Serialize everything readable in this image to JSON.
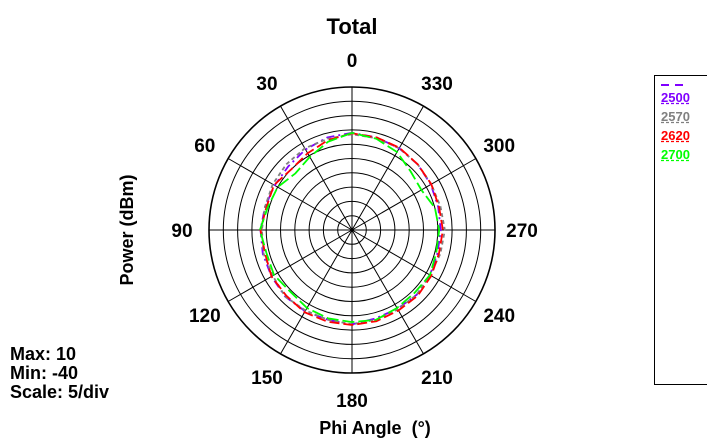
{
  "chart_data": {
    "type": "polar-line",
    "title": "Total",
    "rlabel": "Power (dBm)",
    "anglelabel": "Phi Angle  (°)",
    "angle_ticks": [
      "0",
      "30",
      "60",
      "90",
      "120",
      "150",
      "180",
      "210",
      "240",
      "270",
      "300",
      "330"
    ],
    "angle_direction": "counterclockwise",
    "angle_zero": "top",
    "rlim": [
      -40,
      10
    ],
    "r_step": 5,
    "stats": {
      "max": "Max: 10",
      "min": "Min: -40",
      "scale": "Scale: 5/div"
    },
    "series": [
      {
        "name": "2500",
        "color": "#8000ff",
        "dash": "8,4,2,4",
        "values": [
          [
            0,
            -6.0
          ],
          [
            15,
            -6.5
          ],
          [
            30,
            -7.5
          ],
          [
            45,
            -8.5
          ],
          [
            60,
            -8.8
          ],
          [
            75,
            -8.5
          ],
          [
            90,
            -8.0
          ],
          [
            105,
            -7.7
          ],
          [
            120,
            -7.5
          ],
          [
            135,
            -7.0
          ],
          [
            150,
            -7.2
          ],
          [
            165,
            -7.5
          ],
          [
            180,
            -7.0
          ],
          [
            195,
            -8.0
          ],
          [
            210,
            -8.2
          ],
          [
            225,
            -8.0
          ],
          [
            240,
            -8.5
          ],
          [
            255,
            -9.0
          ],
          [
            270,
            -9.0
          ],
          [
            285,
            -8.8
          ],
          [
            300,
            -8.2
          ],
          [
            315,
            -7.5
          ],
          [
            330,
            -7.0
          ],
          [
            345,
            -6.5
          ]
        ]
      },
      {
        "name": "2570",
        "color": "#808080",
        "dash": "4,3",
        "values": [
          [
            0,
            -6.5
          ],
          [
            15,
            -7.0
          ],
          [
            30,
            -7.0
          ],
          [
            45,
            -7.5
          ],
          [
            60,
            -8.0
          ],
          [
            75,
            -8.5
          ],
          [
            90,
            -8.5
          ],
          [
            105,
            -8.0
          ],
          [
            120,
            -8.0
          ],
          [
            135,
            -7.0
          ],
          [
            150,
            -7.5
          ],
          [
            165,
            -7.5
          ],
          [
            180,
            -7.0
          ],
          [
            195,
            -7.5
          ],
          [
            210,
            -8.0
          ],
          [
            225,
            -8.0
          ],
          [
            240,
            -8.5
          ],
          [
            255,
            -8.0
          ],
          [
            270,
            -7.5
          ],
          [
            285,
            -8.0
          ],
          [
            300,
            -8.0
          ],
          [
            315,
            -7.5
          ],
          [
            330,
            -7.0
          ],
          [
            345,
            -6.8
          ]
        ]
      },
      {
        "name": "2620",
        "color": "#ff0000",
        "dash": "10,4",
        "values": [
          [
            0,
            -6.2
          ],
          [
            15,
            -7.5
          ],
          [
            30,
            -9.0
          ],
          [
            45,
            -10.0
          ],
          [
            60,
            -8.5
          ],
          [
            75,
            -9.0
          ],
          [
            90,
            -8.0
          ],
          [
            105,
            -8.5
          ],
          [
            120,
            -7.5
          ],
          [
            135,
            -7.5
          ],
          [
            150,
            -6.8
          ],
          [
            165,
            -6.8
          ],
          [
            180,
            -6.8
          ],
          [
            195,
            -7.0
          ],
          [
            210,
            -7.5
          ],
          [
            225,
            -7.5
          ],
          [
            240,
            -8.0
          ],
          [
            255,
            -8.5
          ],
          [
            270,
            -8.2
          ],
          [
            285,
            -8.5
          ],
          [
            300,
            -8.0
          ],
          [
            315,
            -7.5
          ],
          [
            330,
            -6.8
          ],
          [
            345,
            -6.5
          ]
        ]
      },
      {
        "name": "2700",
        "color": "#00ff00",
        "dash": "12,4",
        "values": [
          [
            0,
            -6.0
          ],
          [
            15,
            -8.0
          ],
          [
            30,
            -10.5
          ],
          [
            45,
            -12.0
          ],
          [
            60,
            -10.0
          ],
          [
            75,
            -9.5
          ],
          [
            90,
            -7.8
          ],
          [
            105,
            -9.0
          ],
          [
            120,
            -8.5
          ],
          [
            135,
            -9.5
          ],
          [
            150,
            -8.5
          ],
          [
            165,
            -8.0
          ],
          [
            180,
            -7.8
          ],
          [
            195,
            -7.5
          ],
          [
            210,
            -8.5
          ],
          [
            225,
            -9.0
          ],
          [
            240,
            -8.5
          ],
          [
            255,
            -9.5
          ],
          [
            270,
            -9.5
          ],
          [
            285,
            -10.0
          ],
          [
            300,
            -12.0
          ],
          [
            315,
            -11.0
          ],
          [
            330,
            -8.5
          ],
          [
            345,
            -7.0
          ]
        ]
      }
    ]
  }
}
